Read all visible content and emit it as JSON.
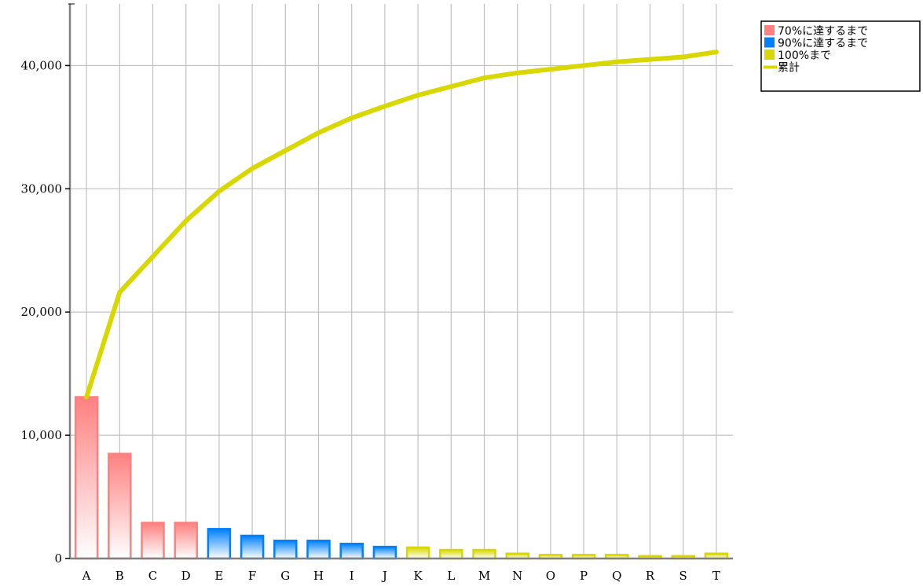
{
  "chart_data": {
    "type": "bar",
    "categories": [
      "A",
      "B",
      "C",
      "D",
      "E",
      "F",
      "G",
      "H",
      "I",
      "J",
      "K",
      "L",
      "M",
      "N",
      "O",
      "P",
      "Q",
      "R",
      "S",
      "T"
    ],
    "values": [
      13100,
      8500,
      2900,
      2900,
      2400,
      1850,
      1450,
      1450,
      1200,
      950,
      900,
      700,
      700,
      400,
      300,
      300,
      300,
      200,
      200,
      400
    ],
    "value_groups": [
      "70%に達するまで",
      "70%に達するまで",
      "70%に達するまで",
      "70%に達するまで",
      "90%に達するまで",
      "90%に達するまで",
      "90%に達するまで",
      "90%に達するまで",
      "90%に達するまで",
      "90%に達するまで",
      "100%まで",
      "100%まで",
      "100%まで",
      "100%まで",
      "100%まで",
      "100%まで",
      "100%まで",
      "100%まで",
      "100%まで",
      "100%まで"
    ],
    "cumulative": {
      "name": "累計",
      "values": [
        13100,
        21600,
        24500,
        27400,
        29800,
        31650,
        33100,
        34550,
        35750,
        36700,
        37600,
        38300,
        39000,
        39400,
        39700,
        40000,
        40300,
        40500,
        40700,
        41100
      ]
    },
    "yticks": [
      0,
      10000,
      20000,
      30000,
      40000
    ],
    "ytick_labels": [
      "0",
      "10,000",
      "20,000",
      "30,000",
      "40,000"
    ],
    "ylim": [
      0,
      45000
    ],
    "grid": true,
    "legend_position": "top-right",
    "legend": [
      {
        "label": "70%に達するまで",
        "kind": "bar",
        "color": "#ff8080"
      },
      {
        "label": "90%に達するまで",
        "kind": "bar",
        "color": "#0080ff"
      },
      {
        "label": "100%まで",
        "kind": "bar",
        "color": "#d8d800"
      },
      {
        "label": "累計",
        "kind": "line",
        "color": "#d8d800"
      }
    ],
    "colors": {
      "70%に達するまで": "#ff8080",
      "90%に達するまで": "#0080ff",
      "100%まで": "#d8d800",
      "line": "#d8d800"
    }
  }
}
